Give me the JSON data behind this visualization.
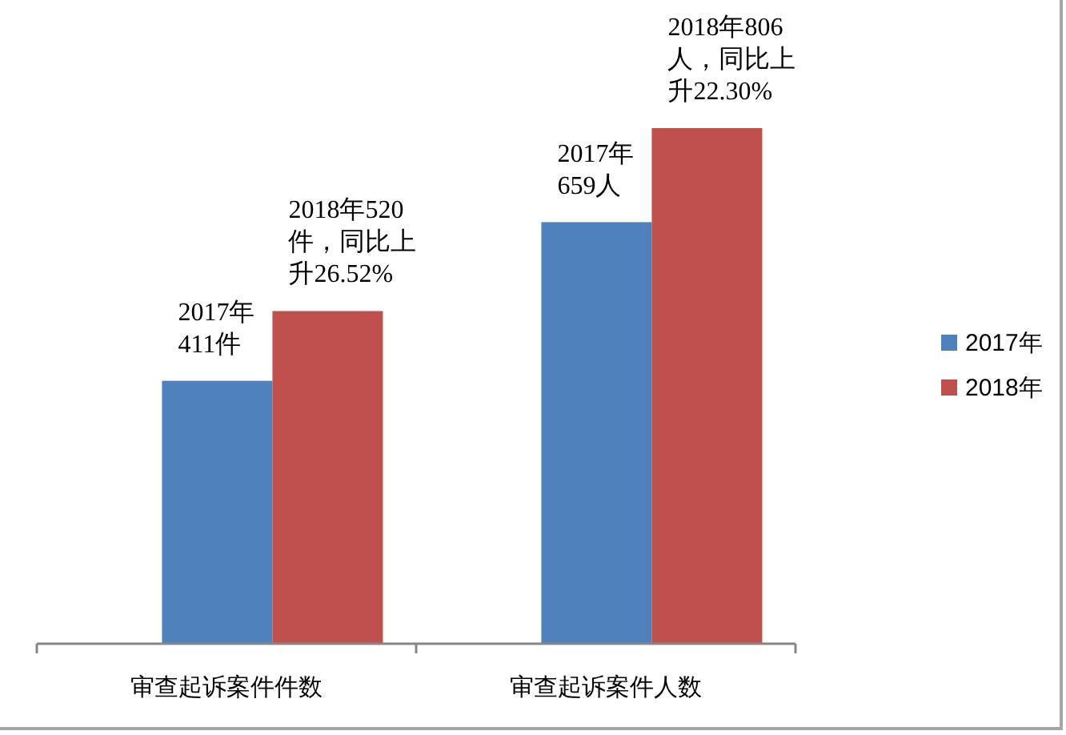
{
  "chart_data": {
    "type": "bar",
    "categories": [
      "审查起诉案件件数",
      "审查起诉案件人数"
    ],
    "series": [
      {
        "name": "2017年",
        "color": "#4f81bd",
        "values": [
          411,
          659
        ],
        "value_labels": [
          "2017年411件",
          "2017年659人"
        ]
      },
      {
        "name": "2018年",
        "color": "#c0504d",
        "values": [
          520,
          806
        ],
        "value_labels": [
          "2018年520件，同比上升26.52%",
          "2018年806人，同比上升22.30%"
        ]
      }
    ],
    "legend": "right"
  }
}
